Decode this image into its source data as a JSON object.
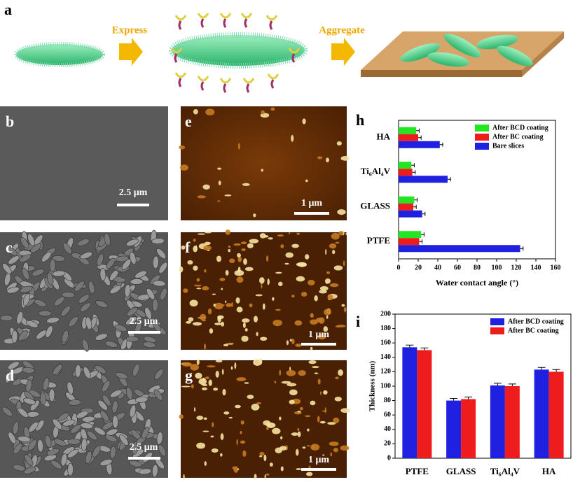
{
  "figure": {
    "panels": [
      "a",
      "b",
      "c",
      "d",
      "e",
      "f",
      "g",
      "h",
      "i"
    ],
    "express": "Express",
    "aggregate": "Aggregate",
    "scale_bars": [
      "2.5 μm",
      "2.5 μm",
      "2.5 μm",
      "1 μm",
      "1 μm",
      "1 μm"
    ]
  },
  "chart_data": [
    {
      "type": "bar",
      "orientation": "horizontal",
      "categories": [
        "HA",
        "Ti₆Al₄V",
        "GLASS",
        "PTFE"
      ],
      "series": [
        {
          "name": "After BCD coating",
          "color": "#22e622",
          "values": [
            18,
            13,
            16,
            23
          ],
          "errors": [
            3,
            3,
            3,
            3
          ]
        },
        {
          "name": "After BC coating",
          "color": "#ee1c1c",
          "values": [
            20,
            14,
            15,
            21
          ],
          "errors": [
            3,
            3,
            3,
            3
          ]
        },
        {
          "name": "Bare slices",
          "color": "#2020e0",
          "values": [
            42,
            50,
            24,
            124
          ],
          "errors": [
            3,
            3,
            3,
            3
          ]
        }
      ],
      "xlim": [
        0,
        160
      ],
      "xticks": [
        0,
        20,
        40,
        60,
        80,
        100,
        120,
        140,
        160
      ],
      "xlabel": "Water contact angle (°)",
      "legend": "upper right"
    },
    {
      "type": "bar",
      "orientation": "vertical",
      "categories": [
        "PTFE",
        "GLASS",
        "Ti₆Al₄V",
        "HA"
      ],
      "series": [
        {
          "name": "After BCD coating",
          "color": "#2020e0",
          "values": [
            154,
            80,
            101,
            123
          ],
          "errors": [
            3,
            3,
            3,
            3
          ]
        },
        {
          "name": "After BC coating",
          "color": "#ee1c1c",
          "values": [
            150,
            82,
            100,
            120
          ],
          "errors": [
            3,
            3,
            3,
            3
          ]
        }
      ],
      "ylim": [
        0,
        200
      ],
      "yticks": [
        0,
        20,
        40,
        60,
        80,
        100,
        120,
        140,
        160,
        180,
        200
      ],
      "ylabel": "Thickness (nm)",
      "legend": "upper right"
    }
  ]
}
